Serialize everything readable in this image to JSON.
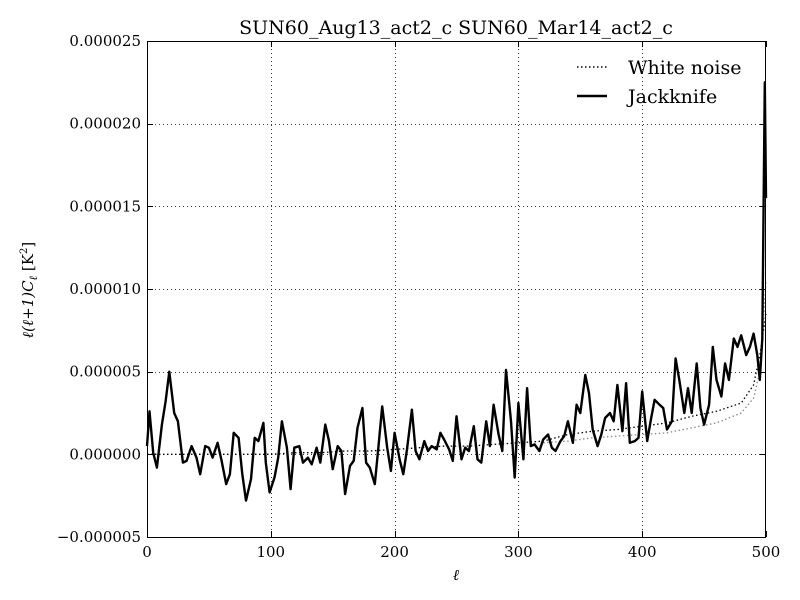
{
  "chart_data": {
    "type": "line",
    "title": "SUN60_Aug13_act2_c SUN60_Mar14_act2_c",
    "xlabel": "ℓ",
    "ylabel": "ℓ(ℓ+1)C",
    "ylabel_sub": "ℓ",
    "ylabel_unit": " [K",
    "ylabel_unit_sup": "2",
    "ylabel_unit_close": "]",
    "xlim": [
      0,
      500
    ],
    "ylim": [
      -5e-06,
      2.5e-05
    ],
    "xticks": [
      0,
      100,
      200,
      300,
      400,
      500
    ],
    "xtick_labels": [
      "0",
      "100",
      "200",
      "300",
      "400",
      "500"
    ],
    "yticks": [
      -5e-06,
      0.0,
      5e-06,
      1e-05,
      1.5e-05,
      2e-05,
      2.5e-05
    ],
    "ytick_labels": [
      "−0.000005",
      "0.000000",
      "0.000005",
      "0.000010",
      "0.000015",
      "0.000020",
      "0.000025"
    ],
    "grid": true,
    "legend_position": "top-right",
    "series": [
      {
        "name": "White noise",
        "style": "dotted",
        "color": "#000000",
        "x": [
          0,
          20,
          40,
          60,
          80,
          100,
          120,
          140,
          160,
          180,
          200,
          220,
          240,
          260,
          280,
          300,
          320,
          340,
          360,
          380,
          400,
          420,
          440,
          460,
          480,
          490,
          495,
          500
        ],
        "y": [
          0.0,
          0.0,
          0.0,
          0.0,
          0.0,
          0.0,
          1e-07,
          1e-07,
          2e-07,
          2e-07,
          3e-07,
          4e-07,
          5e-07,
          5e-07,
          6e-07,
          7e-07,
          8e-07,
          1.2e-06,
          1.4e-06,
          1.5e-06,
          1.7e-06,
          1.9e-06,
          2.3e-06,
          2.6e-06,
          3.1e-06,
          4.2e-06,
          6e-06,
          8.5e-06
        ]
      },
      {
        "name": "White noise",
        "style": "dotted",
        "color": "#888888",
        "x": [
          320,
          340,
          360,
          380,
          400,
          420,
          440,
          460,
          480,
          490,
          495,
          500
        ],
        "y": [
          7e-07,
          8e-07,
          1e-06,
          1.1e-06,
          1.2e-06,
          1.3e-06,
          1.6e-06,
          1.9e-06,
          2.5e-06,
          3.4e-06,
          5e-06,
          1.05e-05
        ]
      },
      {
        "name": "Jackknife",
        "style": "solid",
        "color": "#000000",
        "x": [
          0,
          2,
          5,
          8,
          12,
          15,
          18,
          22,
          25,
          29,
          32,
          36,
          40,
          43,
          47,
          50,
          53,
          57,
          60,
          64,
          67,
          70,
          74,
          77,
          80,
          84,
          87,
          90,
          94,
          96,
          99,
          103,
          106,
          109,
          113,
          116,
          119,
          123,
          126,
          130,
          133,
          137,
          140,
          144,
          147,
          150,
          154,
          157,
          160,
          164,
          167,
          170,
          174,
          177,
          180,
          184,
          187,
          190,
          194,
          197,
          200,
          204,
          207,
          210,
          214,
          217,
          220,
          224,
          227,
          230,
          234,
          237,
          240,
          244,
          247,
          250,
          254,
          257,
          260,
          264,
          267,
          270,
          274,
          277,
          280,
          284,
          287,
          290,
          294,
          297,
          300,
          304,
          307,
          310,
          313,
          317,
          320,
          324,
          327,
          330,
          334,
          337,
          340,
          344,
          347,
          350,
          354,
          357,
          360,
          364,
          367,
          370,
          374,
          377,
          380,
          384,
          387,
          390,
          394,
          397,
          400,
          404,
          407,
          410,
          414,
          417,
          420,
          424,
          427,
          430,
          434,
          437,
          440,
          444,
          447,
          450,
          454,
          457,
          460,
          464,
          467,
          470,
          474,
          477,
          480,
          484,
          487,
          490,
          493,
          495,
          497,
          499,
          500
        ],
        "y": [
          5e-07,
          2.6e-06,
          1e-07,
          -8e-07,
          1.8e-06,
          3.2e-06,
          5e-06,
          2.5e-06,
          2e-06,
          -5e-07,
          -4e-07,
          5e-07,
          -2e-07,
          -1.2e-06,
          5e-07,
          4e-07,
          -2e-07,
          7e-07,
          -3e-07,
          -1.8e-06,
          -1.2e-06,
          1.3e-06,
          1e-06,
          -1.2e-06,
          -2.8e-06,
          -1.5e-06,
          1e-06,
          8e-07,
          1.9e-06,
          -5e-07,
          -2.3e-06,
          -1.4e-06,
          -2e-07,
          2e-06,
          4e-07,
          -2.1e-06,
          4e-07,
          5e-07,
          -5e-07,
          -2e-07,
          -6e-07,
          4e-07,
          -5e-07,
          1.8e-06,
          8e-07,
          -9e-07,
          5e-07,
          2e-07,
          -2.4e-06,
          -7e-07,
          -4e-07,
          1.6e-06,
          2.8e-06,
          -5e-07,
          -8e-07,
          -1.8e-06,
          5e-07,
          2.9e-06,
          4e-07,
          -1e-06,
          1.3e-06,
          -3e-07,
          -1.2e-06,
          3e-07,
          2.7e-06,
          2e-07,
          -3e-07,
          8e-07,
          2e-07,
          5e-07,
          3e-07,
          1.3e-06,
          9e-07,
          3e-07,
          -4e-07,
          2.3e-06,
          -3e-07,
          4e-07,
          2e-07,
          1.7e-06,
          -3e-07,
          -5e-07,
          2e-06,
          5e-07,
          3e-06,
          1.2e-06,
          2e-07,
          5.1e-06,
          2e-06,
          -1.4e-06,
          3.1e-06,
          -3e-07,
          4e-06,
          5e-07,
          6e-07,
          2e-07,
          9e-07,
          1.2e-06,
          4e-07,
          2e-07,
          8e-07,
          1.1e-06,
          2e-06,
          7e-07,
          3e-06,
          2.5e-06,
          4.8e-06,
          3.7e-06,
          1.5e-06,
          5e-07,
          1.2e-06,
          2.2e-06,
          2.5e-06,
          2e-06,
          4.2e-06,
          1.4e-06,
          4.3e-06,
          7e-07,
          8e-07,
          1e-06,
          3.8e-06,
          8e-07,
          2.1e-06,
          3.3e-06,
          3e-06,
          2.8e-06,
          1.5e-06,
          2e-06,
          5.8e-06,
          4.5e-06,
          2.5e-06,
          4e-06,
          2.5e-06,
          5.5e-06,
          2.8e-06,
          1.8e-06,
          3e-06,
          6.5e-06,
          4.5e-06,
          3.5e-06,
          5.5e-06,
          4.5e-06,
          7e-06,
          6.5e-06,
          7.2e-06,
          6e-06,
          6.5e-06,
          7.3e-06,
          6e-06,
          4.5e-06,
          7e-06,
          2.25e-05,
          1.55e-05
        ]
      }
    ]
  }
}
